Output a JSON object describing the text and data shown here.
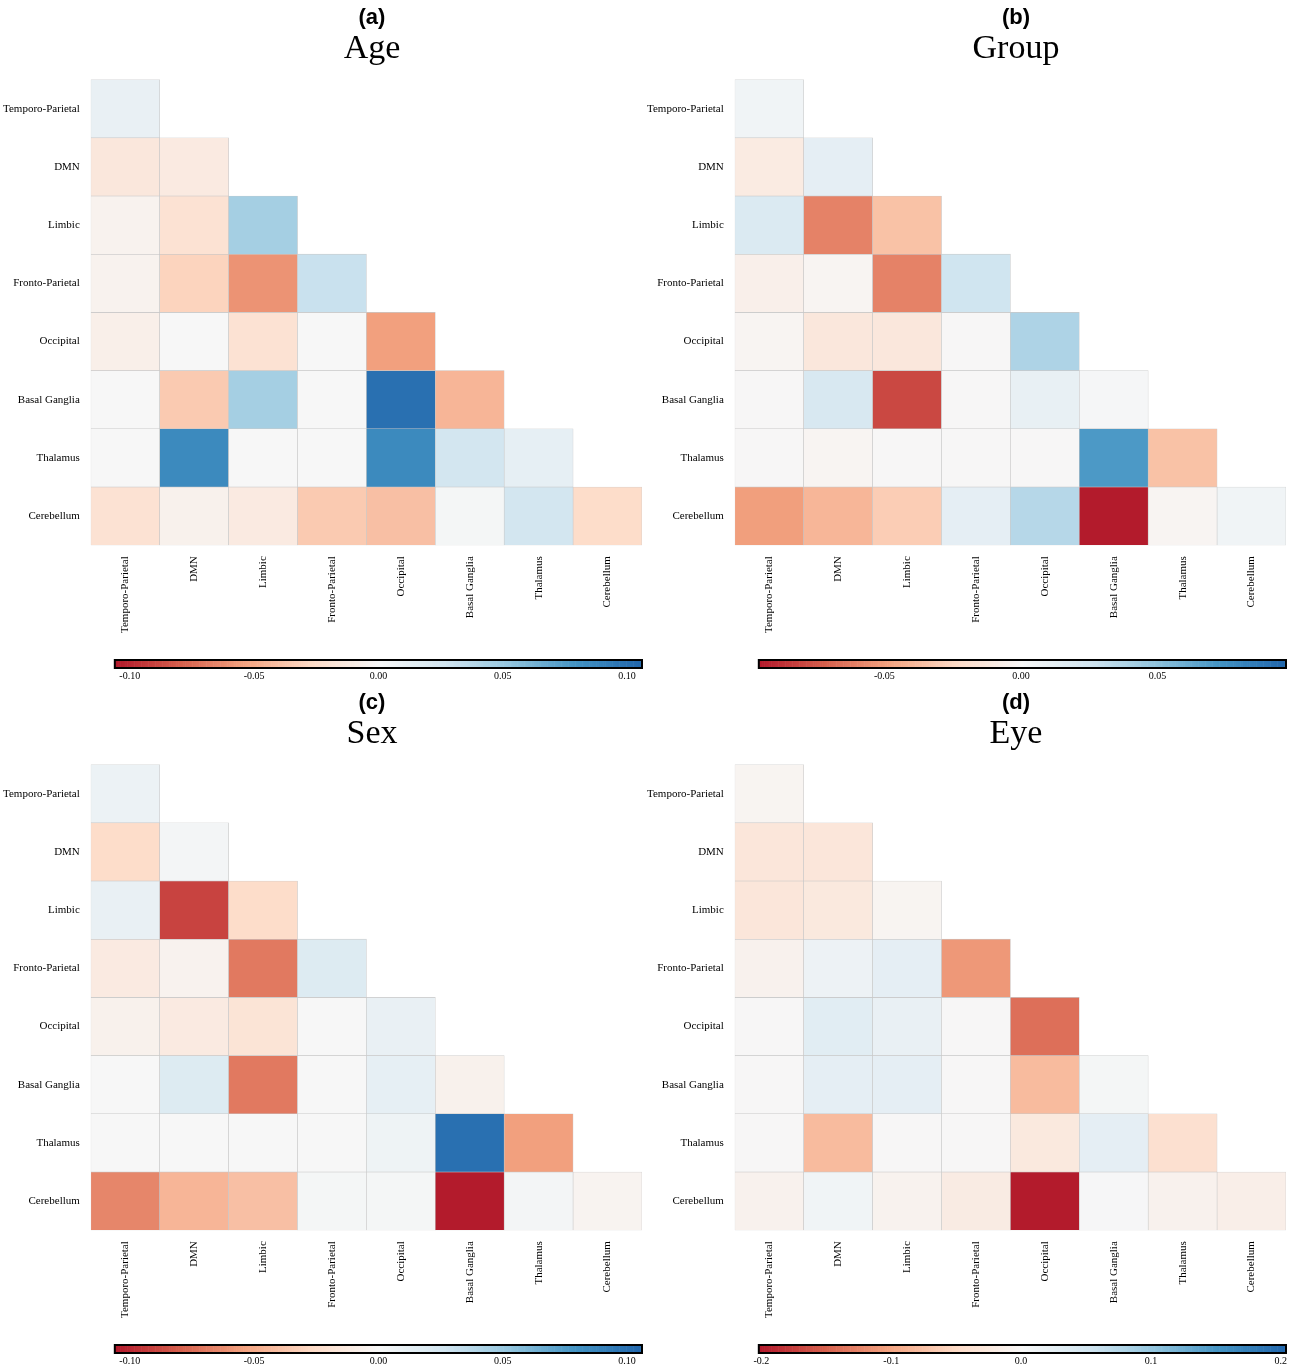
{
  "chart_data": [
    {
      "type": "heatmap",
      "subtitle": "(a)",
      "title": "Age",
      "categories": [
        "Temporo-Parietal",
        "DMN",
        "Limbic",
        "Fronto-Parietal",
        "Occipital",
        "Basal Ganglia",
        "Thalamus",
        "Cerebellum"
      ],
      "y_categories": [
        "Temporo-Parietal",
        "DMN",
        "Limbic",
        "Fronto-Parietal",
        "Occipital",
        "Basal Ganglia",
        "Thalamus",
        "Cerebellum"
      ],
      "cells": [
        [
          0.01,
          null,
          null,
          null,
          null,
          null,
          null,
          null
        ],
        [
          -0.015,
          -0.012,
          null,
          null,
          null,
          null,
          null,
          null
        ],
        [
          -0.005,
          -0.02,
          0.045,
          null,
          null,
          null,
          null,
          null
        ],
        [
          -0.005,
          -0.03,
          -0.06,
          0.03,
          null,
          null,
          null,
          null
        ],
        [
          -0.008,
          0.0,
          -0.02,
          0.0,
          -0.055,
          null,
          null,
          null
        ],
        [
          0.0,
          -0.035,
          0.045,
          0.0,
          0.1,
          -0.045,
          null,
          null
        ],
        [
          0.0,
          0.085,
          0.0,
          0.0,
          0.085,
          0.025,
          0.012,
          null
        ],
        [
          -0.02,
          -0.006,
          -0.012,
          -0.035,
          -0.04,
          0.002,
          0.025,
          -0.025
        ]
      ],
      "clim": [
        -0.106,
        0.106
      ],
      "cticks": [
        {
          "value": -0.1,
          "label": "-0.10"
        },
        {
          "value": -0.05,
          "label": "-0.05"
        },
        {
          "value": 0,
          "label": "0.00"
        },
        {
          "value": 0.05,
          "label": "0.05"
        },
        {
          "value": 0.1,
          "label": "0.10"
        }
      ]
    },
    {
      "type": "heatmap",
      "subtitle": "(b)",
      "title": "Group",
      "categories": [
        "Temporo-Parietal",
        "DMN",
        "Limbic",
        "Fronto-Parietal",
        "Occipital",
        "Basal Ganglia",
        "Thalamus",
        "Cerebellum"
      ],
      "y_categories": [
        "Temporo-Parietal",
        "DMN",
        "Limbic",
        "Fronto-Parietal",
        "Occipital",
        "Basal Ganglia",
        "Thalamus",
        "Cerebellum"
      ],
      "cells": [
        [
          0.005,
          null,
          null,
          null,
          null,
          null,
          null,
          null
        ],
        [
          -0.01,
          0.012,
          null,
          null,
          null,
          null,
          null,
          null
        ],
        [
          0.018,
          -0.06,
          -0.035,
          null,
          null,
          null,
          null,
          null
        ],
        [
          -0.006,
          -0.002,
          -0.06,
          0.025,
          null,
          null,
          null,
          null
        ],
        [
          -0.002,
          -0.013,
          -0.013,
          0.0,
          0.038,
          null,
          null,
          null
        ],
        [
          0.0,
          0.02,
          -0.08,
          0.0,
          0.01,
          0.002,
          null,
          null
        ],
        [
          0.0,
          -0.002,
          0.0,
          0.0,
          0.0,
          0.07,
          -0.035,
          null
        ],
        [
          -0.05,
          -0.04,
          -0.03,
          0.012,
          0.035,
          -0.095,
          -0.002,
          0.005
        ]
      ],
      "clim": [
        -0.096,
        0.097
      ],
      "cticks": [
        {
          "value": -0.05,
          "label": "-0.05"
        },
        {
          "value": 0,
          "label": "0.00"
        },
        {
          "value": 0.05,
          "label": "0.05"
        }
      ]
    },
    {
      "type": "heatmap",
      "subtitle": "(c)",
      "title": "Sex",
      "categories": [
        "Temporo-Parietal",
        "DMN",
        "Limbic",
        "Fronto-Parietal",
        "Occipital",
        "Basal Ganglia",
        "Thalamus",
        "Cerebellum"
      ],
      "y_categories": [
        "Temporo-Parietal",
        "DMN",
        "Limbic",
        "Fronto-Parietal",
        "Occipital",
        "Basal Ganglia",
        "Thalamus",
        "Cerebellum"
      ],
      "cells": [
        [
          0.008,
          null,
          null,
          null,
          null,
          null,
          null,
          null
        ],
        [
          -0.025,
          0.003,
          null,
          null,
          null,
          null,
          null,
          null
        ],
        [
          0.01,
          -0.09,
          -0.025,
          null,
          null,
          null,
          null,
          null
        ],
        [
          -0.012,
          -0.005,
          -0.07,
          0.018,
          null,
          null,
          null,
          null
        ],
        [
          -0.006,
          -0.012,
          -0.018,
          0.0,
          0.01,
          null,
          null,
          null
        ],
        [
          0.0,
          0.018,
          -0.07,
          0.0,
          0.012,
          -0.006,
          null,
          null
        ],
        [
          0.0,
          0.0,
          0.0,
          0.0,
          0.006,
          0.1,
          -0.055,
          null
        ],
        [
          -0.065,
          -0.045,
          -0.04,
          0.002,
          0.002,
          -0.105,
          0.003,
          -0.004
        ]
      ],
      "clim": [
        -0.106,
        0.106
      ],
      "cticks": [
        {
          "value": -0.1,
          "label": "-0.10"
        },
        {
          "value": -0.05,
          "label": "-0.05"
        },
        {
          "value": 0,
          "label": "0.00"
        },
        {
          "value": 0.05,
          "label": "0.05"
        },
        {
          "value": 0.1,
          "label": "0.10"
        }
      ]
    },
    {
      "type": "heatmap",
      "subtitle": "(d)",
      "title": "Eye",
      "categories": [
        "Temporo-Parietal",
        "DMN",
        "Limbic",
        "Fronto-Parietal",
        "Occipital",
        "Basal Ganglia",
        "Thalamus",
        "Cerebellum"
      ],
      "y_categories": [
        "Temporo-Parietal",
        "DMN",
        "Limbic",
        "Fronto-Parietal",
        "Occipital",
        "Basal Ganglia",
        "Thalamus",
        "Cerebellum"
      ],
      "cells": [
        [
          -0.005,
          null,
          null,
          null,
          null,
          null,
          null,
          null
        ],
        [
          -0.03,
          -0.03,
          null,
          null,
          null,
          null,
          null,
          null
        ],
        [
          -0.03,
          -0.025,
          -0.005,
          null,
          null,
          null,
          null,
          null
        ],
        [
          -0.01,
          0.015,
          0.025,
          -0.11,
          null,
          null,
          null,
          null
        ],
        [
          0.0,
          0.03,
          0.02,
          0.0,
          -0.14,
          null,
          null,
          null
        ],
        [
          0.0,
          0.025,
          0.025,
          0.0,
          -0.08,
          0.005,
          null,
          null
        ],
        [
          0.0,
          -0.08,
          0.0,
          0.0,
          -0.025,
          0.025,
          -0.04,
          null
        ],
        [
          -0.01,
          0.01,
          -0.008,
          -0.02,
          -0.2,
          0.003,
          -0.01,
          -0.015
        ]
      ],
      "clim": [
        -0.202,
        0.204
      ],
      "cticks": [
        {
          "value": -0.2,
          "label": "-0.2"
        },
        {
          "value": -0.1,
          "label": "-0.1"
        },
        {
          "value": 0,
          "label": "0.0"
        },
        {
          "value": 0.1,
          "label": "0.1"
        },
        {
          "value": 0.2,
          "label": "0.2"
        }
      ]
    }
  ]
}
